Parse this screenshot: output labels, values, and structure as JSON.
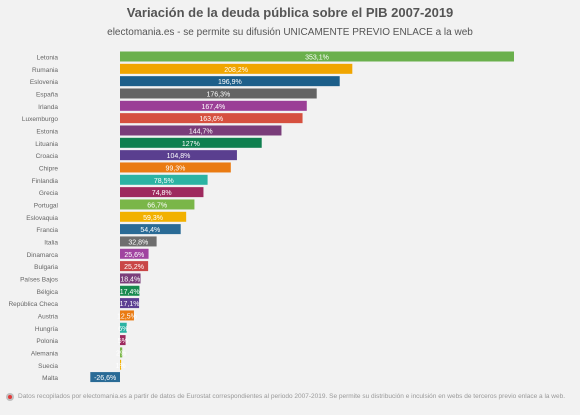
{
  "header": {
    "title": "Variación de la deuda pública sobre el PIB 2007-2019",
    "subtitle": "electomania.es - se permite su difusión UNICAMENTE PREVIO ENLACE a la web"
  },
  "footer": {
    "note": "Datos recopilados por electomania.es a partir de datos de Eurostat correspondientes al periodo 2007-2019. Se permite su distribución e inculsión en webs de terceros previo enlace a la web.",
    "icon": "electomania-logo-icon"
  },
  "chart_data": {
    "type": "bar",
    "orientation": "horizontal",
    "categories": [
      "Letonia",
      "Rumania",
      "Eslovenia",
      "España",
      "Irlanda",
      "Luxemburgo",
      "Estonia",
      "Lituania",
      "Croacia",
      "Chipre",
      "Finlandia",
      "Grecia",
      "Portugal",
      "Eslovaquia",
      "Francia",
      "Italia",
      "Dinamarca",
      "Bulgaria",
      "Países Bajos",
      "Bélgica",
      "República Checa",
      "Austria",
      "Hungría",
      "Polonia",
      "Alemania",
      "Suecia",
      "Malta"
    ],
    "values": [
      353.1,
      208.2,
      196.9,
      176.3,
      167.4,
      163.6,
      144.7,
      127,
      104.8,
      99.3,
      78.5,
      74.8,
      66.7,
      59.3,
      54.4,
      32.8,
      25.6,
      25.2,
      18.4,
      17.4,
      17.1,
      12.5,
      6,
      5,
      2,
      1,
      -26.6
    ],
    "labels": [
      "353,1%",
      "208,2%",
      "196,9%",
      "176,3%",
      "167,4%",
      "163,6%",
      "144,7%",
      "127%",
      "104,8%",
      "99,3%",
      "78,5%",
      "74,8%",
      "66,7%",
      "59,3%",
      "54,4%",
      "32,8%",
      "25,6%",
      "25,2%",
      "18,4%",
      "17,4%",
      "17,1%",
      "12,5%",
      "6%",
      "5%",
      "2%",
      "1%",
      "-26,6%"
    ],
    "colors": [
      "#6ab04c",
      "#f0a500",
      "#1d5f8a",
      "#636363",
      "#9b3f96",
      "#d6503f",
      "#7a3d7a",
      "#0f7f4f",
      "#5a3f8f",
      "#ea7b12",
      "#2bb3a3",
      "#9e2a5e",
      "#7ab648",
      "#f2b100",
      "#2a6b96",
      "#6e6e6e",
      "#a044a0",
      "#c94646",
      "#7b3f7b",
      "#178a4f",
      "#5c3f92",
      "#ea7b12",
      "#2bb3a3",
      "#9e2a5e",
      "#7ab648",
      "#f2b100",
      "#2a6b96"
    ],
    "xlim": [
      -40,
      360
    ],
    "grid": false,
    "legend": "none"
  }
}
